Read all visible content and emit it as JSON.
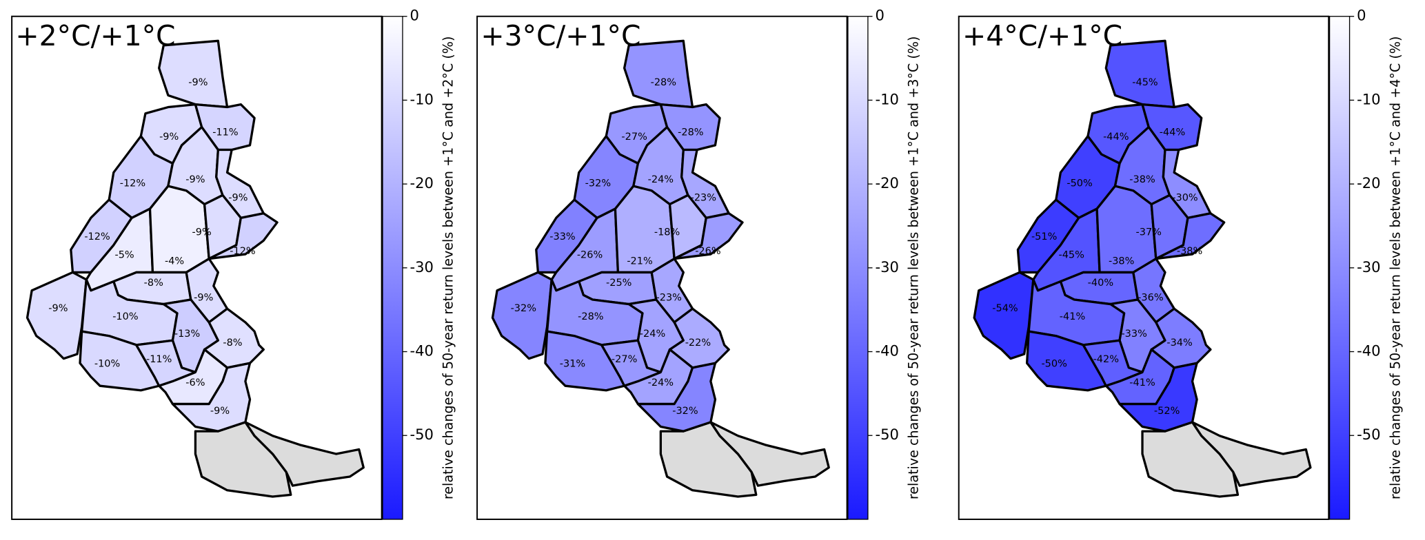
{
  "panels": [
    {
      "title": "+2°C/+1°C",
      "colorbar": {
        "label": "relative changes of 50-year return levels between +1°C and +2°C (%)",
        "lim": [
          -60,
          0
        ],
        "ticks": [
          0,
          -10,
          -20,
          -30,
          -40,
          -50
        ]
      },
      "regions": [
        {
          "value": -9,
          "label": "-9%"
        },
        {
          "value": -9,
          "label": "-9%"
        },
        {
          "value": -11,
          "label": "-11%"
        },
        {
          "value": -12,
          "label": "-12%"
        },
        {
          "value": -9,
          "label": "-9%"
        },
        {
          "value": -9,
          "label": "-9%"
        },
        {
          "value": -12,
          "label": "-12%"
        },
        {
          "value": -5,
          "label": "-5%"
        },
        {
          "value": -4,
          "label": "-4%"
        },
        {
          "value": -9,
          "label": "-9%"
        },
        {
          "value": -12,
          "label": "-12%"
        },
        {
          "value": -8,
          "label": "-8%"
        },
        {
          "value": -9,
          "label": "-9%"
        },
        {
          "value": -9,
          "label": "-9%"
        },
        {
          "value": -10,
          "label": "-10%"
        },
        {
          "value": -13,
          "label": "-13%"
        },
        {
          "value": -8,
          "label": "-8%"
        },
        {
          "value": -10,
          "label": "-10%"
        },
        {
          "value": -11,
          "label": "-11%"
        },
        {
          "value": -6,
          "label": "-6%"
        },
        {
          "value": -9,
          "label": "-9%"
        }
      ]
    },
    {
      "title": "+3°C/+1°C",
      "colorbar": {
        "label": "relative changes of 50-year return levels between +1°C and +3°C (%)",
        "lim": [
          -60,
          0
        ],
        "ticks": [
          0,
          -10,
          -20,
          -30,
          -40,
          -50
        ]
      },
      "regions": [
        {
          "value": -28,
          "label": "-28%"
        },
        {
          "value": -27,
          "label": "-27%"
        },
        {
          "value": -28,
          "label": "-28%"
        },
        {
          "value": -32,
          "label": "-32%"
        },
        {
          "value": -24,
          "label": "-24%"
        },
        {
          "value": -23,
          "label": "-23%"
        },
        {
          "value": -33,
          "label": "-33%"
        },
        {
          "value": -26,
          "label": "-26%"
        },
        {
          "value": -21,
          "label": "-21%"
        },
        {
          "value": -18,
          "label": "-18%"
        },
        {
          "value": -26,
          "label": "-26%"
        },
        {
          "value": -25,
          "label": "-25%"
        },
        {
          "value": -23,
          "label": "-23%"
        },
        {
          "value": -32,
          "label": "-32%"
        },
        {
          "value": -28,
          "label": "-28%"
        },
        {
          "value": -24,
          "label": "-24%"
        },
        {
          "value": -22,
          "label": "-22%"
        },
        {
          "value": -31,
          "label": "-31%"
        },
        {
          "value": -27,
          "label": "-27%"
        },
        {
          "value": -24,
          "label": "-24%"
        },
        {
          "value": -32,
          "label": "-32%"
        }
      ]
    },
    {
      "title": "+4°C/+1°C",
      "colorbar": {
        "label": "relative changes of 50-year return levels between +1°C and +4°C (%)",
        "lim": [
          -60,
          0
        ],
        "ticks": [
          0,
          -10,
          -20,
          -30,
          -40,
          -50
        ]
      },
      "regions": [
        {
          "value": -45,
          "label": "-45%"
        },
        {
          "value": -44,
          "label": "-44%"
        },
        {
          "value": -44,
          "label": "-44%"
        },
        {
          "value": -50,
          "label": "-50%"
        },
        {
          "value": -38,
          "label": "-38%"
        },
        {
          "value": -30,
          "label": "-30%"
        },
        {
          "value": -51,
          "label": "-51%"
        },
        {
          "value": -45,
          "label": "-45%"
        },
        {
          "value": -38,
          "label": "-38%"
        },
        {
          "value": -37,
          "label": "-37%"
        },
        {
          "value": -38,
          "label": "-38%"
        },
        {
          "value": -40,
          "label": "-40%"
        },
        {
          "value": -36,
          "label": "-36%"
        },
        {
          "value": -54,
          "label": "-54%"
        },
        {
          "value": -41,
          "label": "-41%"
        },
        {
          "value": -33,
          "label": "-33%"
        },
        {
          "value": -34,
          "label": "-34%"
        },
        {
          "value": -50,
          "label": "-50%"
        },
        {
          "value": -42,
          "label": "-42%"
        },
        {
          "value": -41,
          "label": "-41%"
        },
        {
          "value": -52,
          "label": "-52%"
        }
      ]
    }
  ]
}
